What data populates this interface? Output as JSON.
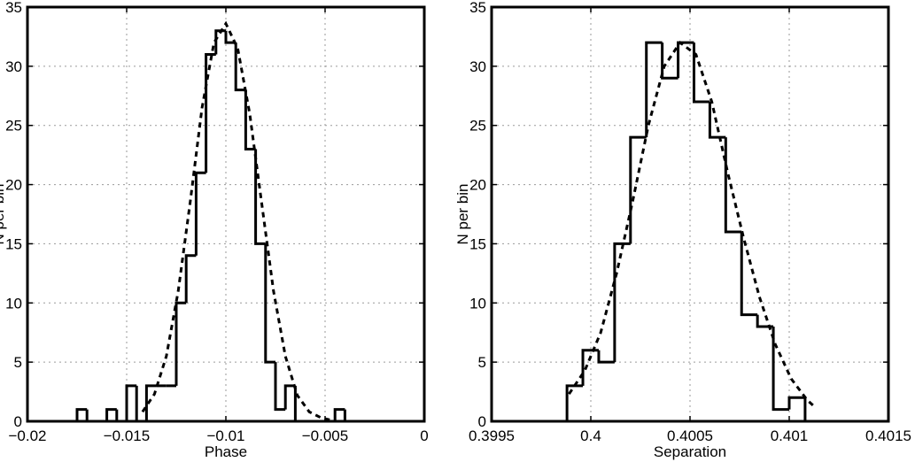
{
  "chart_data": [
    {
      "type": "histogram",
      "xlabel": "Phase",
      "ylabel": "N per bin",
      "xlim": [
        -0.02,
        0
      ],
      "ylim": [
        0,
        35
      ],
      "xticks": [
        -0.02,
        -0.015,
        -0.01,
        -0.005,
        0
      ],
      "xtick_labels": [
        "−0.02",
        "−0.015",
        "−0.01",
        "−0.005",
        "0"
      ],
      "yticks": [
        0,
        5,
        10,
        15,
        20,
        25,
        30,
        35
      ],
      "ytick_labels": [
        "0",
        "5",
        "10",
        "15",
        "20",
        "25",
        "30",
        "35"
      ],
      "grid": true,
      "histogram": {
        "bin_edges": [
          -0.0175,
          -0.017,
          -0.0165,
          -0.016,
          -0.0155,
          -0.015,
          -0.0145,
          -0.014,
          -0.0135,
          -0.013,
          -0.0125,
          -0.012,
          -0.0115,
          -0.011,
          -0.0105,
          -0.01,
          -0.0095,
          -0.009,
          -0.0085,
          -0.008,
          -0.0075,
          -0.007,
          -0.0065,
          -0.006,
          -0.0055,
          -0.005,
          -0.0045,
          -0.004,
          -0.0035
        ],
        "counts": [
          1,
          0,
          0,
          1,
          0,
          3,
          0,
          3,
          3,
          3,
          10,
          14,
          21,
          31,
          33,
          32,
          28,
          23,
          15,
          5,
          1,
          3,
          0,
          0,
          0,
          0,
          1,
          0
        ]
      },
      "fit": {
        "style": "dashed",
        "x": [
          -0.0142,
          -0.0136,
          -0.013,
          -0.0124,
          -0.0118,
          -0.0112,
          -0.0106,
          -0.01,
          -0.0094,
          -0.0088,
          -0.0082,
          -0.0076,
          -0.007,
          -0.0064,
          -0.0058,
          -0.0052,
          -0.0047
        ],
        "y": [
          0.8,
          2.3,
          5.5,
          11,
          18.5,
          26.5,
          32,
          33.6,
          31.5,
          26,
          18.5,
          11,
          5.5,
          2.2,
          0.8,
          0.3,
          0.1
        ]
      }
    },
    {
      "type": "histogram",
      "xlabel": "Separation",
      "ylabel": "N per bin",
      "xlim": [
        0.3995,
        0.4015
      ],
      "ylim": [
        0,
        35
      ],
      "xticks": [
        0.3995,
        0.4,
        0.4005,
        0.401,
        0.4015
      ],
      "xtick_labels": [
        "0.3995",
        "0.4",
        "0.4005",
        "0.401",
        "0.4015"
      ],
      "yticks": [
        0,
        5,
        10,
        15,
        20,
        25,
        30,
        35
      ],
      "ytick_labels": [
        "0",
        "5",
        "10",
        "15",
        "20",
        "25",
        "30",
        "35"
      ],
      "grid": true,
      "histogram": {
        "bin_edges": [
          0.39988,
          0.39996,
          0.40004,
          0.40012,
          0.4002,
          0.40028,
          0.40036,
          0.40044,
          0.40052,
          0.4006,
          0.40068,
          0.40076,
          0.40084,
          0.40092,
          0.401,
          0.40108,
          0.40116,
          0.40124
        ],
        "counts": [
          3,
          6,
          5,
          15,
          24,
          32,
          29,
          32,
          27,
          24,
          16,
          9,
          8,
          1,
          2,
          0,
          0
        ]
      },
      "fit": {
        "style": "dashed",
        "x": [
          0.39989,
          0.39997,
          0.40005,
          0.40013,
          0.40021,
          0.40029,
          0.40037,
          0.40045,
          0.40053,
          0.40061,
          0.40069,
          0.40077,
          0.40085,
          0.40093,
          0.40101,
          0.40109,
          0.40113
        ],
        "y": [
          2.3,
          4.3,
          7.5,
          12.5,
          18.5,
          25,
          30,
          32,
          31,
          27,
          21,
          15.5,
          10.5,
          6.5,
          3.6,
          1.8,
          1.2
        ]
      }
    }
  ]
}
